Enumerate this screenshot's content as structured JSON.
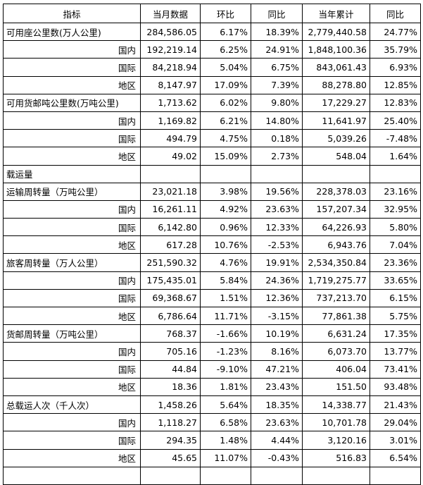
{
  "table": {
    "header": [
      "指标",
      "当月数据",
      "环比",
      "同比",
      "当年累计",
      "同比"
    ],
    "groups": [
      {
        "name": "可用座公里数(万人公里)",
        "cells": [
          "284,586.05",
          "6.17%",
          "18.39%",
          "2,779,440.58",
          "24.77%"
        ],
        "children": [
          {
            "name": "国内",
            "cells": [
              "192,219.14",
              "6.25%",
              "24.91%",
              "1,848,100.36",
              "35.79%"
            ]
          },
          {
            "name": "国际",
            "cells": [
              "84,218.94",
              "5.04%",
              "6.75%",
              "843,061.43",
              "6.93%"
            ]
          },
          {
            "name": "地区",
            "cells": [
              "8,147.97",
              "17.09%",
              "7.39%",
              "88,278.80",
              "12.85%"
            ]
          }
        ]
      },
      {
        "name": "可用货邮吨公里数(万吨公里)",
        "cells": [
          "1,713.62",
          "6.02%",
          "9.80%",
          "17,229.27",
          "12.83%"
        ],
        "children": [
          {
            "name": "国内",
            "cells": [
              "1,169.82",
              "6.21%",
              "14.80%",
              "11,641.97",
              "25.40%"
            ]
          },
          {
            "name": "国际",
            "cells": [
              "494.79",
              "4.75%",
              "0.18%",
              "5,039.26",
              "-7.48%"
            ]
          },
          {
            "name": "地区",
            "cells": [
              "49.02",
              "15.09%",
              "2.73%",
              "548.04",
              "1.64%"
            ]
          }
        ]
      },
      {
        "name": "载运量"
      },
      {
        "name": "运输周转量（万吨公里）",
        "cells": [
          "23,021.18",
          "3.98%",
          "19.56%",
          "228,378.03",
          "23.16%"
        ],
        "children": [
          {
            "name": "国内",
            "cells": [
              "16,261.11",
              "4.92%",
              "23.63%",
              "157,207.34",
              "32.95%"
            ]
          },
          {
            "name": "国际",
            "cells": [
              "6,142.80",
              "0.96%",
              "12.33%",
              "64,226.93",
              "5.80%"
            ]
          },
          {
            "name": "地区",
            "cells": [
              "617.28",
              "10.76%",
              "-2.53%",
              "6,943.76",
              "7.04%"
            ]
          }
        ]
      },
      {
        "name": "旅客周转量（万人公里）",
        "cells": [
          "251,590.32",
          "4.76%",
          "19.91%",
          "2,534,350.84",
          "23.36%"
        ],
        "children": [
          {
            "name": "国内",
            "cells": [
              "175,435.01",
              "5.84%",
              "24.36%",
              "1,719,275.77",
              "33.65%"
            ]
          },
          {
            "name": "国际",
            "cells": [
              "69,368.67",
              "1.51%",
              "12.36%",
              "737,213.70",
              "6.15%"
            ]
          },
          {
            "name": "地区",
            "cells": [
              "6,786.64",
              "11.71%",
              "-3.15%",
              "77,861.38",
              "5.75%"
            ]
          }
        ]
      },
      {
        "name": "货邮周转量（万吨公里）",
        "cells": [
          "768.37",
          "-1.66%",
          "10.19%",
          "6,631.24",
          "17.35%"
        ],
        "children": [
          {
            "name": "国内",
            "cells": [
              "705.16",
              "-1.23%",
              "8.16%",
              "6,073.70",
              "13.77%"
            ]
          },
          {
            "name": "国际",
            "cells": [
              "44.84",
              "-9.10%",
              "47.21%",
              "406.04",
              "73.41%"
            ]
          },
          {
            "name": "地区",
            "cells": [
              "18.36",
              "1.81%",
              "23.43%",
              "151.50",
              "93.48%"
            ]
          }
        ]
      },
      {
        "name": "总载运人次（千人次）",
        "cells": [
          "1,458.26",
          "5.64%",
          "18.35%",
          "14,338.77",
          "21.43%"
        ],
        "children": [
          {
            "name": "国内",
            "cells": [
              "1,118.27",
              "6.58%",
              "23.63%",
              "10,701.78",
              "29.04%"
            ]
          },
          {
            "name": "国际",
            "cells": [
              "294.35",
              "1.48%",
              "4.44%",
              "3,120.16",
              "3.01%"
            ]
          },
          {
            "name": "地区",
            "cells": [
              "45.65",
              "11.07%",
              "-0.43%",
              "516.83",
              "6.54%"
            ]
          }
        ]
      }
    ]
  }
}
